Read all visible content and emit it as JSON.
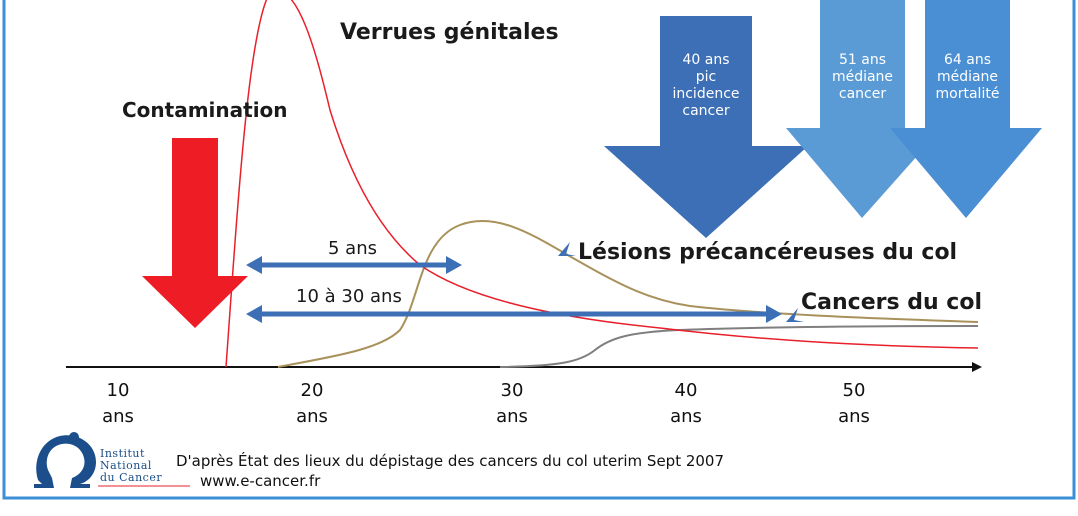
{
  "labels": {
    "verrues": "Verrues génitales",
    "contamination": "Contamination",
    "lesions": "Lésions précancéreuses du col",
    "cancers": "Cancers du col",
    "span_short": "5 ans",
    "span_long": "10 à 30 ans"
  },
  "big_arrows": [
    {
      "line1": "40 ans",
      "line2": "pic",
      "line3": "incidence",
      "line4": "cancer",
      "color": "#3c6fb5"
    },
    {
      "line1": "51 ans",
      "line2": "médiane",
      "line3": "cancer",
      "color": "#5b9bd5"
    },
    {
      "line1": "64 ans",
      "line2": "médiane",
      "line3": "mortalité",
      "color": "#4a8fd4"
    }
  ],
  "axis": {
    "ticks": [
      {
        "value": "10",
        "unit": "ans"
      },
      {
        "value": "20",
        "unit": "ans"
      },
      {
        "value": "30",
        "unit": "ans"
      },
      {
        "value": "40",
        "unit": "ans"
      },
      {
        "value": "50",
        "unit": "ans"
      }
    ]
  },
  "colors": {
    "verrues_curve": "#e8202a",
    "lesions_curve": "#a8915a",
    "cancers_curve": "#7f7f7f",
    "contamination_arrow": "#ee1c25",
    "span_arrows": "#3c6fb5",
    "border": "#3b8fd6"
  },
  "source": {
    "line1": "D'après État des lieux du dépistage des cancers du col uterim Sept 2007",
    "line2": "www.e-cancer.fr"
  },
  "logo": {
    "line1": "Institut",
    "line2": "National",
    "line3": "du Cancer"
  }
}
